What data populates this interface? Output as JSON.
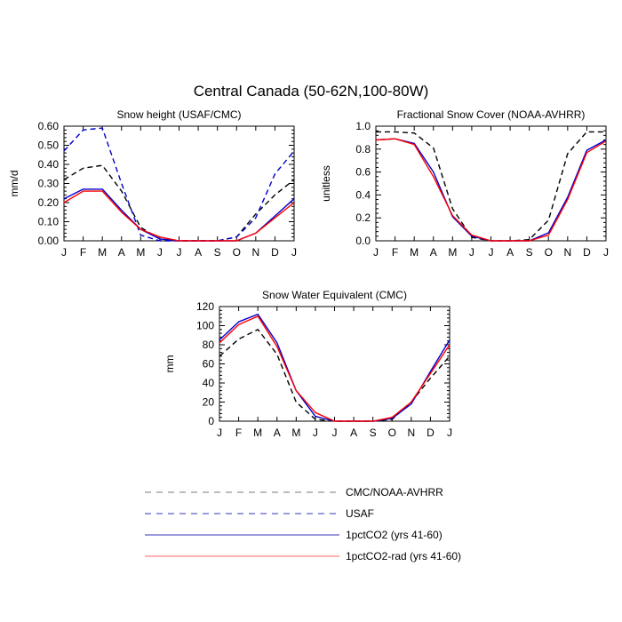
{
  "figure": {
    "title": "Central Canada (50-62N,100-80W)"
  },
  "months": [
    "J",
    "F",
    "M",
    "A",
    "M",
    "J",
    "J",
    "A",
    "S",
    "O",
    "N",
    "D",
    "J"
  ],
  "styles": {
    "obs": {
      "color": "#000000",
      "dash": "6,4"
    },
    "usaf": {
      "color": "#0000cc",
      "dash": "6,4"
    },
    "pct": {
      "color": "#0000cc",
      "dash": ""
    },
    "rad": {
      "color": "#ff0000",
      "dash": ""
    }
  },
  "chart_data": [
    {
      "id": "snow-height",
      "type": "line",
      "title": "Snow height (USAF/CMC)",
      "ylabel": "mm/d",
      "xlabel": "",
      "ylim": [
        0,
        0.6
      ],
      "yticks": [
        0.0,
        0.1,
        0.2,
        0.3,
        0.4,
        0.5,
        0.6
      ],
      "ytick_labels": [
        "0.00",
        "0.10",
        "0.20",
        "0.30",
        "0.40",
        "0.50",
        "0.60"
      ],
      "series": [
        {
          "key": "obs",
          "style": "obs",
          "values": [
            0.32,
            0.38,
            0.395,
            0.26,
            0.07,
            0.01,
            0.0,
            0.0,
            0.0,
            0.02,
            0.14,
            0.24,
            0.32
          ]
        },
        {
          "key": "usaf",
          "style": "usaf",
          "values": [
            0.47,
            0.58,
            0.59,
            0.3,
            0.03,
            0.0,
            0.0,
            0.0,
            0.0,
            0.02,
            0.12,
            0.35,
            0.47
          ]
        },
        {
          "key": "pct",
          "style": "pct",
          "values": [
            0.22,
            0.27,
            0.27,
            0.16,
            0.06,
            0.01,
            0.0,
            0.0,
            0.0,
            0.0,
            0.04,
            0.13,
            0.22
          ]
        },
        {
          "key": "rad",
          "style": "rad",
          "values": [
            0.2,
            0.26,
            0.26,
            0.15,
            0.06,
            0.02,
            0.0,
            0.0,
            0.0,
            0.0,
            0.04,
            0.12,
            0.2
          ]
        }
      ]
    },
    {
      "id": "fractional-snow-cover",
      "type": "line",
      "title": "Fractional Snow Cover (NOAA-AVHRR)",
      "ylabel": "unitless",
      "xlabel": "",
      "ylim": [
        0,
        1.0
      ],
      "yticks": [
        0.0,
        0.2,
        0.4,
        0.6,
        0.8,
        1.0
      ],
      "ytick_labels": [
        "0.0",
        "0.2",
        "0.4",
        "0.6",
        "0.8",
        "1.0"
      ],
      "series": [
        {
          "key": "obs",
          "style": "obs",
          "values": [
            0.95,
            0.95,
            0.94,
            0.81,
            0.28,
            0.03,
            0.0,
            0.0,
            0.01,
            0.18,
            0.76,
            0.95,
            0.95
          ]
        },
        {
          "key": "pct",
          "style": "pct",
          "values": [
            0.88,
            0.89,
            0.85,
            0.6,
            0.21,
            0.04,
            0.0,
            0.0,
            0.0,
            0.07,
            0.38,
            0.79,
            0.88
          ]
        },
        {
          "key": "rad",
          "style": "rad",
          "values": [
            0.88,
            0.89,
            0.84,
            0.56,
            0.22,
            0.05,
            0.0,
            0.0,
            0.0,
            0.05,
            0.36,
            0.77,
            0.87
          ]
        }
      ]
    },
    {
      "id": "snow-water-equivalent",
      "type": "line",
      "title": "Snow Water Equivalent (CMC)",
      "ylabel": "mm",
      "xlabel": "",
      "ylim": [
        0,
        120
      ],
      "yticks": [
        0,
        20,
        40,
        60,
        80,
        100,
        120
      ],
      "ytick_labels": [
        "0",
        "20",
        "40",
        "60",
        "80",
        "100",
        "120"
      ],
      "series": [
        {
          "key": "obs",
          "style": "obs",
          "values": [
            68,
            86,
            96,
            70,
            20,
            2,
            0,
            0,
            0,
            2,
            20,
            45,
            68
          ]
        },
        {
          "key": "pct",
          "style": "pct",
          "values": [
            85,
            104,
            112,
            82,
            32,
            5,
            0,
            0,
            0,
            3,
            18,
            52,
            85
          ]
        },
        {
          "key": "rad",
          "style": "rad",
          "values": [
            82,
            101,
            110,
            78,
            32,
            9,
            0,
            0,
            0,
            4,
            20,
            50,
            80
          ]
        }
      ]
    }
  ],
  "legend": [
    {
      "key": "obs",
      "label": "CMC/NOAA-AVHRR",
      "stroke": "#7a7a7a",
      "dash": "7,6"
    },
    {
      "key": "usaf",
      "label": "USAF",
      "stroke": "#3333bb",
      "dash": "7,6"
    },
    {
      "key": "pct",
      "label": "1pctCO2 (yrs 41-60)",
      "stroke": "#3333bb",
      "dash": ""
    },
    {
      "key": "rad",
      "label": "1pctCO2-rad (yrs 41-60)",
      "stroke": "#ff6666",
      "dash": ""
    }
  ]
}
